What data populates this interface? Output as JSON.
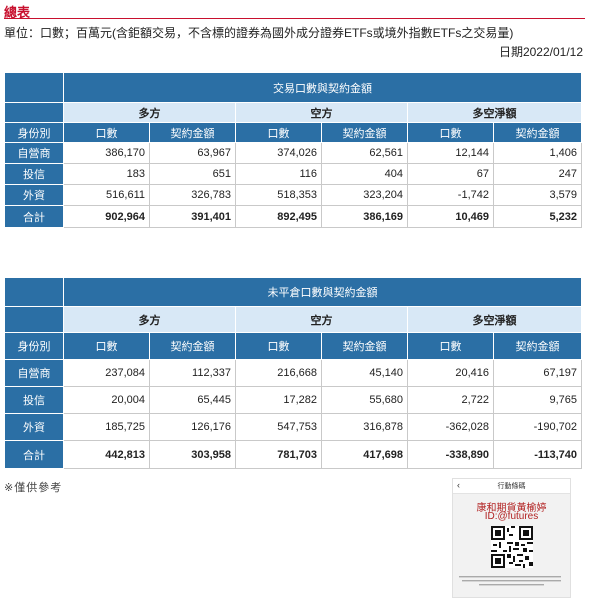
{
  "page": {
    "title": "總表",
    "unit": "單位：口數；百萬元(含鉅額交易，不含標的證券為國外成分證券ETFs或境外指數ETFs之交易量)",
    "date": "日期2022/01/12"
  },
  "table1": {
    "title": "交易口數與契約金額",
    "groups": [
      "多方",
      "空方",
      "多空淨額"
    ],
    "identity_header": "身份別",
    "col_headers": [
      "口數",
      "契約金額",
      "口數",
      "契約金額",
      "口數",
      "契約金額"
    ],
    "rows": [
      {
        "label": "自營商",
        "values": [
          "386,170",
          "63,967",
          "374,026",
          "62,561",
          "12,144",
          "1,406"
        ]
      },
      {
        "label": "投信",
        "values": [
          "183",
          "651",
          "116",
          "404",
          "67",
          "247"
        ]
      },
      {
        "label": "外資",
        "values": [
          "516,611",
          "326,783",
          "518,353",
          "323,204",
          "-1,742",
          "3,579"
        ]
      },
      {
        "label": "合計",
        "values": [
          "902,964",
          "391,401",
          "892,495",
          "386,169",
          "10,469",
          "5,232"
        ]
      }
    ]
  },
  "table2": {
    "title": "未平倉口數與契約金額",
    "groups": [
      "多方",
      "空方",
      "多空淨額"
    ],
    "identity_header": "身份別",
    "col_headers": [
      "口數",
      "契約金額",
      "口數",
      "契約金額",
      "口數",
      "契約金額"
    ],
    "rows": [
      {
        "label": "自營商",
        "values": [
          "237,084",
          "112,337",
          "216,668",
          "45,140",
          "20,416",
          "67,197"
        ]
      },
      {
        "label": "投信",
        "values": [
          "20,004",
          "65,445",
          "17,282",
          "55,680",
          "2,722",
          "9,765"
        ]
      },
      {
        "label": "外資",
        "values": [
          "185,725",
          "126,176",
          "547,753",
          "316,878",
          "-362,028",
          "-190,702"
        ]
      },
      {
        "label": "合計",
        "values": [
          "442,813",
          "303,958",
          "781,703",
          "417,698",
          "-338,890",
          "-113,740"
        ]
      }
    ]
  },
  "note": "※僅供參考",
  "promo": {
    "back_icon": "chevron-left-icon",
    "header": "行動條碼",
    "line1": "康和期貨黃榆婷",
    "line2": "ID:@futures"
  },
  "colors": {
    "header_blue": "#2b6fa5",
    "subheader_light": "#d8e8f6",
    "title_red": "#c8102e"
  }
}
